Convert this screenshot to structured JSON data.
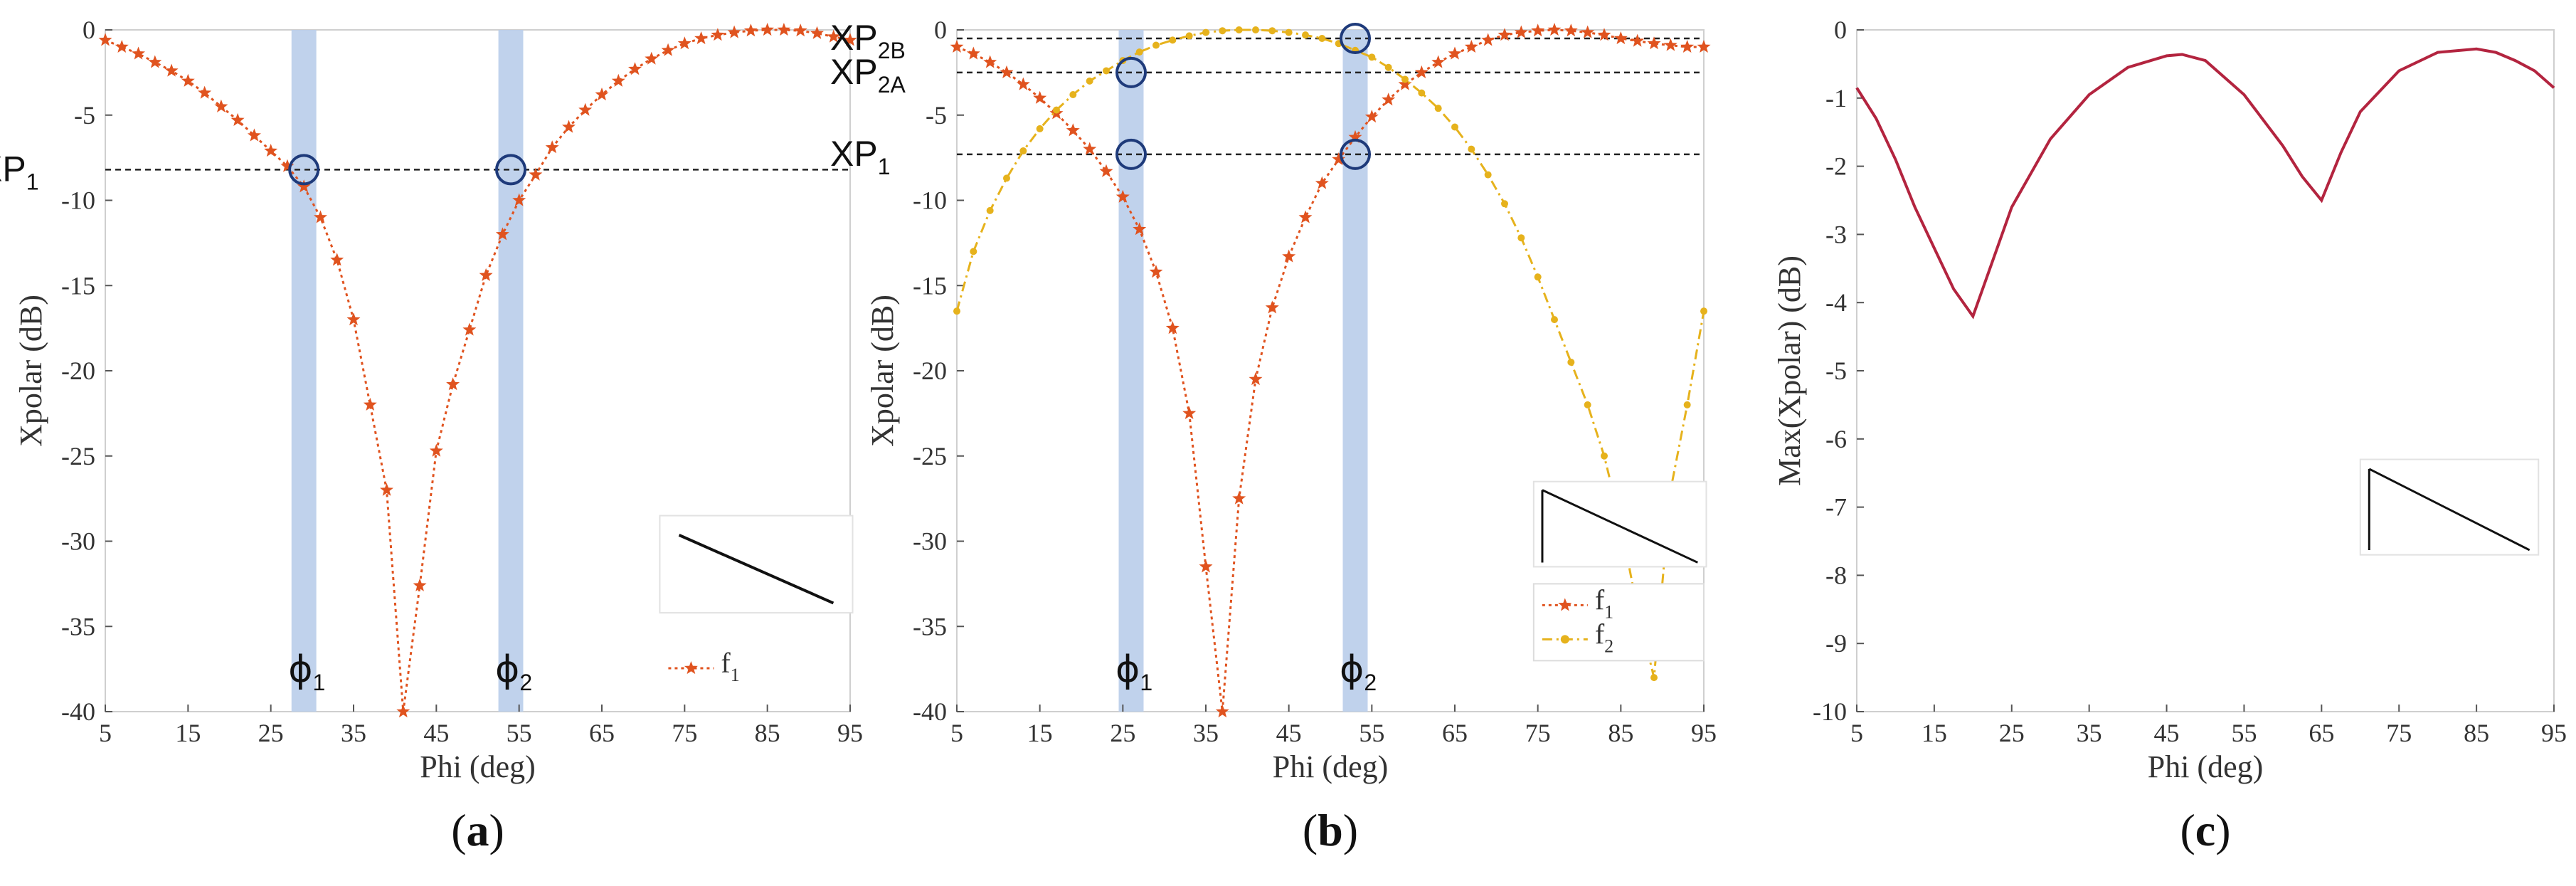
{
  "colors": {
    "f1": "#e0531f",
    "f2": "#e6b21c",
    "envelope": "#b3243f",
    "band": "#b9cdea",
    "circle": "#1e3a7a"
  },
  "chart_data": [
    {
      "type": "line",
      "panel": "a",
      "caption": {
        "open": "(",
        "letter": "a",
        "close": ")"
      },
      "xlabel": "Phi (deg)",
      "ylabel": "Xpolar (dB)",
      "xlim": [
        5,
        95
      ],
      "ylim": [
        -40,
        0
      ],
      "xticks": [
        5,
        15,
        25,
        35,
        45,
        55,
        65,
        75,
        85,
        95
      ],
      "yticks": [
        0,
        -5,
        -10,
        -15,
        -20,
        -25,
        -30,
        -35,
        -40
      ],
      "series": [
        {
          "name": "f1",
          "label_main": "f",
          "label_sub": "1",
          "color_key": "f1",
          "marker": "star",
          "style": "dotted",
          "x": [
            5,
            7,
            9,
            11,
            13,
            15,
            17,
            19,
            21,
            23,
            25,
            27,
            29,
            31,
            33,
            35,
            37,
            39,
            41,
            43,
            45,
            47,
            49,
            51,
            53,
            55,
            57,
            59,
            61,
            63,
            65,
            67,
            69,
            71,
            73,
            75,
            77,
            79,
            81,
            83,
            85,
            87,
            89,
            91,
            93,
            95
          ],
          "y": [
            -0.6,
            -1.0,
            -1.4,
            -1.9,
            -2.4,
            -3.0,
            -3.7,
            -4.5,
            -5.3,
            -6.2,
            -7.1,
            -8.0,
            -9.2,
            -11.0,
            -13.5,
            -17.0,
            -22.0,
            -27.0,
            -40.0,
            -32.6,
            -24.7,
            -20.8,
            -17.6,
            -14.4,
            -12.0,
            -10.0,
            -8.5,
            -6.9,
            -5.7,
            -4.7,
            -3.8,
            -3.0,
            -2.3,
            -1.7,
            -1.2,
            -0.8,
            -0.5,
            -0.3,
            -0.15,
            -0.05,
            0,
            0,
            -0.05,
            -0.2,
            -0.4,
            -0.6
          ]
        }
      ],
      "bands": [
        {
          "x0": 27.5,
          "x1": 30.5
        },
        {
          "x0": 52.5,
          "x1": 55.5
        }
      ],
      "hlines": [
        {
          "y": -8.2,
          "label": "XP",
          "sub": "1"
        }
      ],
      "circles": [
        {
          "x": 29,
          "y": -8.2
        },
        {
          "x": 54,
          "y": -8.2
        }
      ],
      "phi_labels": [
        {
          "x": 29,
          "text": "ϕ",
          "sub": "1"
        },
        {
          "x": 54,
          "text": "ϕ",
          "sub": "2"
        }
      ],
      "legend": {
        "position": "bottom-right"
      },
      "inset": {
        "kind": "diagonal"
      }
    },
    {
      "type": "line",
      "panel": "b",
      "caption": {
        "open": "(",
        "letter": "b",
        "close": ")"
      },
      "xlabel": "Phi (deg)",
      "ylabel": "Xpolar (dB)",
      "xlim": [
        5,
        95
      ],
      "ylim": [
        -40,
        0
      ],
      "xticks": [
        5,
        15,
        25,
        35,
        45,
        55,
        65,
        75,
        85,
        95
      ],
      "yticks": [
        0,
        -5,
        -10,
        -15,
        -20,
        -25,
        -30,
        -35,
        -40
      ],
      "series": [
        {
          "name": "f1",
          "label_main": "f",
          "label_sub": "1",
          "color_key": "f1",
          "marker": "star",
          "style": "dotted",
          "x": [
            5,
            7,
            9,
            11,
            13,
            15,
            17,
            19,
            21,
            23,
            25,
            27,
            29,
            31,
            33,
            35,
            37,
            39,
            41,
            43,
            45,
            47,
            49,
            51,
            53,
            55,
            57,
            59,
            61,
            63,
            65,
            67,
            69,
            71,
            73,
            75,
            77,
            79,
            81,
            83,
            85,
            87,
            89,
            91,
            93,
            95
          ],
          "y": [
            -1.0,
            -1.4,
            -1.9,
            -2.5,
            -3.2,
            -4.0,
            -4.9,
            -5.9,
            -7.0,
            -8.3,
            -9.8,
            -11.7,
            -14.2,
            -17.5,
            -22.5,
            -31.5,
            -40.0,
            -27.5,
            -20.5,
            -16.3,
            -13.3,
            -11.0,
            -9.0,
            -7.6,
            -6.3,
            -5.1,
            -4.1,
            -3.2,
            -2.5,
            -1.9,
            -1.4,
            -1.0,
            -0.6,
            -0.3,
            -0.15,
            -0.05,
            0,
            -0.05,
            -0.15,
            -0.3,
            -0.5,
            -0.65,
            -0.8,
            -0.9,
            -1.0,
            -1.0
          ]
        },
        {
          "name": "f2",
          "label_main": "f",
          "label_sub": "2",
          "color_key": "f2",
          "marker": "dot",
          "style": "dashdot",
          "x": [
            5,
            7,
            9,
            11,
            13,
            15,
            17,
            19,
            21,
            23,
            25,
            27,
            29,
            31,
            33,
            35,
            37,
            39,
            41,
            43,
            45,
            47,
            49,
            51,
            53,
            55,
            57,
            59,
            61,
            63,
            65,
            67,
            69,
            71,
            73,
            75,
            77,
            79,
            81,
            83,
            85,
            87,
            89,
            91,
            93,
            95
          ],
          "y": [
            -16.5,
            -13.0,
            -10.6,
            -8.7,
            -7.1,
            -5.8,
            -4.7,
            -3.8,
            -3.0,
            -2.4,
            -1.8,
            -1.3,
            -0.9,
            -0.6,
            -0.35,
            -0.15,
            -0.05,
            0,
            0,
            -0.05,
            -0.15,
            -0.3,
            -0.5,
            -0.8,
            -1.2,
            -1.6,
            -2.2,
            -2.9,
            -3.7,
            -4.6,
            -5.7,
            -7.0,
            -8.5,
            -10.2,
            -12.2,
            -14.5,
            -17.0,
            -19.5,
            -22.0,
            -25.0,
            -29.0,
            -34.0,
            -38.0,
            -27.0,
            -22.0,
            -16.5
          ]
        }
      ],
      "bands": [
        {
          "x0": 24.5,
          "x1": 27.5
        },
        {
          "x0": 51.5,
          "x1": 54.5
        }
      ],
      "hlines": [
        {
          "y": -0.5,
          "label": "XP",
          "sub": "2B"
        },
        {
          "y": -2.5,
          "label": "XP",
          "sub": "2A"
        },
        {
          "y": -7.3,
          "label": "XP",
          "sub": "1"
        }
      ],
      "circles": [
        {
          "x": 26,
          "y": -2.5
        },
        {
          "x": 26,
          "y": -7.3
        },
        {
          "x": 53,
          "y": -0.5
        },
        {
          "x": 53,
          "y": -7.3
        }
      ],
      "phi_labels": [
        {
          "x": 26,
          "text": "ϕ",
          "sub": "1"
        },
        {
          "x": 53,
          "text": "ϕ",
          "sub": "2"
        }
      ],
      "legend": {
        "position": "bottom-right"
      },
      "inset": {
        "kind": "triangle"
      }
    },
    {
      "type": "line",
      "panel": "c",
      "caption": {
        "open": "(",
        "letter": "c",
        "close": ")"
      },
      "xlabel": "Phi (deg)",
      "ylabel": "Max(Xpolar) (dB)",
      "xlim": [
        5,
        95
      ],
      "ylim": [
        -10,
        0
      ],
      "xticks": [
        5,
        15,
        25,
        35,
        45,
        55,
        65,
        75,
        85,
        95
      ],
      "yticks": [
        0,
        -1,
        -2,
        -3,
        -4,
        -5,
        -6,
        -7,
        -8,
        -9,
        -10
      ],
      "series": [
        {
          "name": "max",
          "color_key": "envelope",
          "marker": "none",
          "style": "solid",
          "x": [
            5,
            7.5,
            10,
            12.5,
            15,
            17.5,
            20,
            22.5,
            25,
            30,
            35,
            40,
            45,
            47,
            50,
            55,
            60,
            62.5,
            65,
            67.5,
            70,
            75,
            80,
            85,
            87.5,
            90,
            92.5,
            95
          ],
          "y": [
            -0.85,
            -1.3,
            -1.9,
            -2.6,
            -3.2,
            -3.8,
            -4.2,
            -3.4,
            -2.6,
            -1.6,
            -0.95,
            -0.55,
            -0.38,
            -0.36,
            -0.45,
            -0.95,
            -1.7,
            -2.15,
            -2.5,
            -1.8,
            -1.2,
            -0.6,
            -0.33,
            -0.28,
            -0.33,
            -0.45,
            -0.6,
            -0.85
          ]
        }
      ],
      "bands": [],
      "hlines": [],
      "circles": [],
      "phi_labels": [],
      "legend": null,
      "inset": {
        "kind": "triangle"
      }
    }
  ]
}
